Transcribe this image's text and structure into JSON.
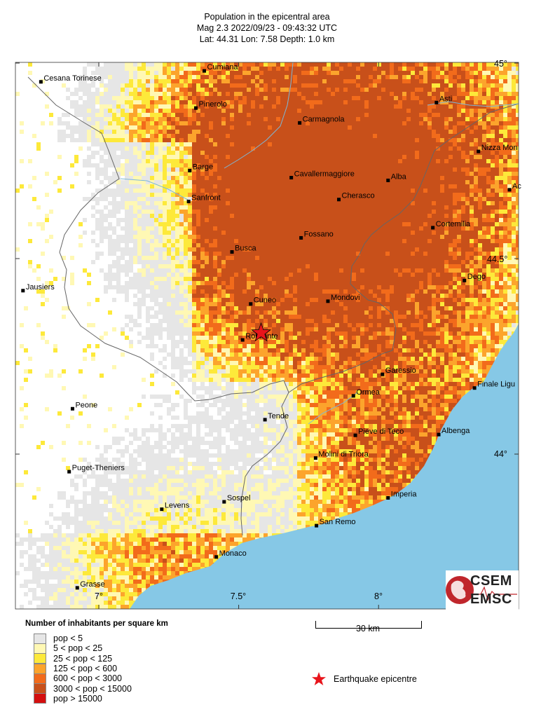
{
  "header": {
    "title": "Population in the epicentral area",
    "line2": "Mag 2.3  2022/09/23 - 09:43:32 UTC",
    "line3": "Lat: 44.31    Lon:  7.58     Depth:  1.0 km"
  },
  "colors": {
    "sea": "#86c8e6",
    "land": "#ffffff",
    "epicentre": "#e8141b",
    "pop_lt5": "#e6e6e6",
    "pop_5_25": "#fff8b4",
    "pop_25_125": "#fde93a",
    "pop_125_600": "#fca42c",
    "pop_600_3000": "#f26b1b",
    "pop_3000_15000": "#c8501a",
    "pop_gt15000": "#d40f0f"
  },
  "map": {
    "lon_ticks": [
      "7°",
      "7.5°",
      "8°"
    ],
    "lat_ticks": [
      "45°",
      "44.5°",
      "44°"
    ],
    "epicentre_label": "Robilante",
    "cities": [
      {
        "name": "Cumiana",
        "lon": 7.377,
        "lat": 44.98
      },
      {
        "name": "Cesana Torinese",
        "lon": 6.793,
        "lat": 44.952
      },
      {
        "name": "Pinerolo",
        "lon": 7.347,
        "lat": 44.885
      },
      {
        "name": "Carmagnola",
        "lon": 7.718,
        "lat": 44.847
      },
      {
        "name": "Asti",
        "lon": 8.207,
        "lat": 44.899
      },
      {
        "name": "Nizza Mon",
        "lon": 8.357,
        "lat": 44.774
      },
      {
        "name": "Barge",
        "lon": 7.325,
        "lat": 44.725
      },
      {
        "name": "Cavallermaggiore",
        "lon": 7.688,
        "lat": 44.707
      },
      {
        "name": "Alba",
        "lon": 8.034,
        "lat": 44.7
      },
      {
        "name": "Sanfront",
        "lon": 7.321,
        "lat": 44.646
      },
      {
        "name": "Cherasco",
        "lon": 7.858,
        "lat": 44.651
      },
      {
        "name": "Ac",
        "lon": 8.468,
        "lat": 44.676
      },
      {
        "name": "Cortemilia",
        "lon": 8.194,
        "lat": 44.579
      },
      {
        "name": "Fossano",
        "lon": 7.723,
        "lat": 44.553
      },
      {
        "name": "Busca",
        "lon": 7.476,
        "lat": 44.517
      },
      {
        "name": "Dego",
        "lon": 8.307,
        "lat": 44.444
      },
      {
        "name": "Jausiers",
        "lon": 6.729,
        "lat": 44.418
      },
      {
        "name": "Cuneo",
        "lon": 7.543,
        "lat": 44.384
      },
      {
        "name": "Mondovi",
        "lon": 7.819,
        "lat": 44.391
      },
      {
        "name": "Robilante",
        "lon": 7.514,
        "lat": 44.292
      },
      {
        "name": "Garessio",
        "lon": 8.014,
        "lat": 44.204
      },
      {
        "name": "Finale Ligu",
        "lon": 8.343,
        "lat": 44.169
      },
      {
        "name": "Ormea",
        "lon": 7.91,
        "lat": 44.149
      },
      {
        "name": "Peone",
        "lon": 6.906,
        "lat": 44.116
      },
      {
        "name": "Tende",
        "lon": 7.594,
        "lat": 44.088
      },
      {
        "name": "Pieve di Teco",
        "lon": 7.917,
        "lat": 44.048
      },
      {
        "name": "Albenga",
        "lon": 8.215,
        "lat": 44.05
      },
      {
        "name": "Molini di Triora",
        "lon": 7.775,
        "lat": 43.99
      },
      {
        "name": "Puget-Theniers",
        "lon": 6.894,
        "lat": 43.955
      },
      {
        "name": "Sospel",
        "lon": 7.448,
        "lat": 43.878
      },
      {
        "name": "Imperia",
        "lon": 8.034,
        "lat": 43.888
      },
      {
        "name": "Levens",
        "lon": 7.225,
        "lat": 43.859
      },
      {
        "name": "San Remo",
        "lon": 7.778,
        "lat": 43.817
      },
      {
        "name": "Monaco",
        "lon": 7.42,
        "lat": 43.737
      },
      {
        "name": "Grasse",
        "lon": 6.923,
        "lat": 43.658
      }
    ],
    "epicentre": {
      "lon": 7.58,
      "lat": 44.31
    }
  },
  "legend": {
    "title": "Number of inhabitants per square km",
    "items": [
      {
        "label": "pop < 5",
        "color": "#e6e6e6"
      },
      {
        "label": "5 < pop < 25",
        "color": "#fff8b4"
      },
      {
        "label": "25 < pop < 125",
        "color": "#fde93a"
      },
      {
        "label": "125 < pop < 600",
        "color": "#fca42c"
      },
      {
        "label": "600 < pop < 3000",
        "color": "#f26b1b"
      },
      {
        "label": "3000 < pop < 15000",
        "color": "#c8501a"
      },
      {
        "label": "pop > 15000",
        "color": "#d40f0f"
      }
    ],
    "scale_label": "30 km",
    "epicentre_label": "Earthquake epicentre"
  },
  "logo": {
    "line1": "CSEM",
    "line2": "EMSC"
  }
}
